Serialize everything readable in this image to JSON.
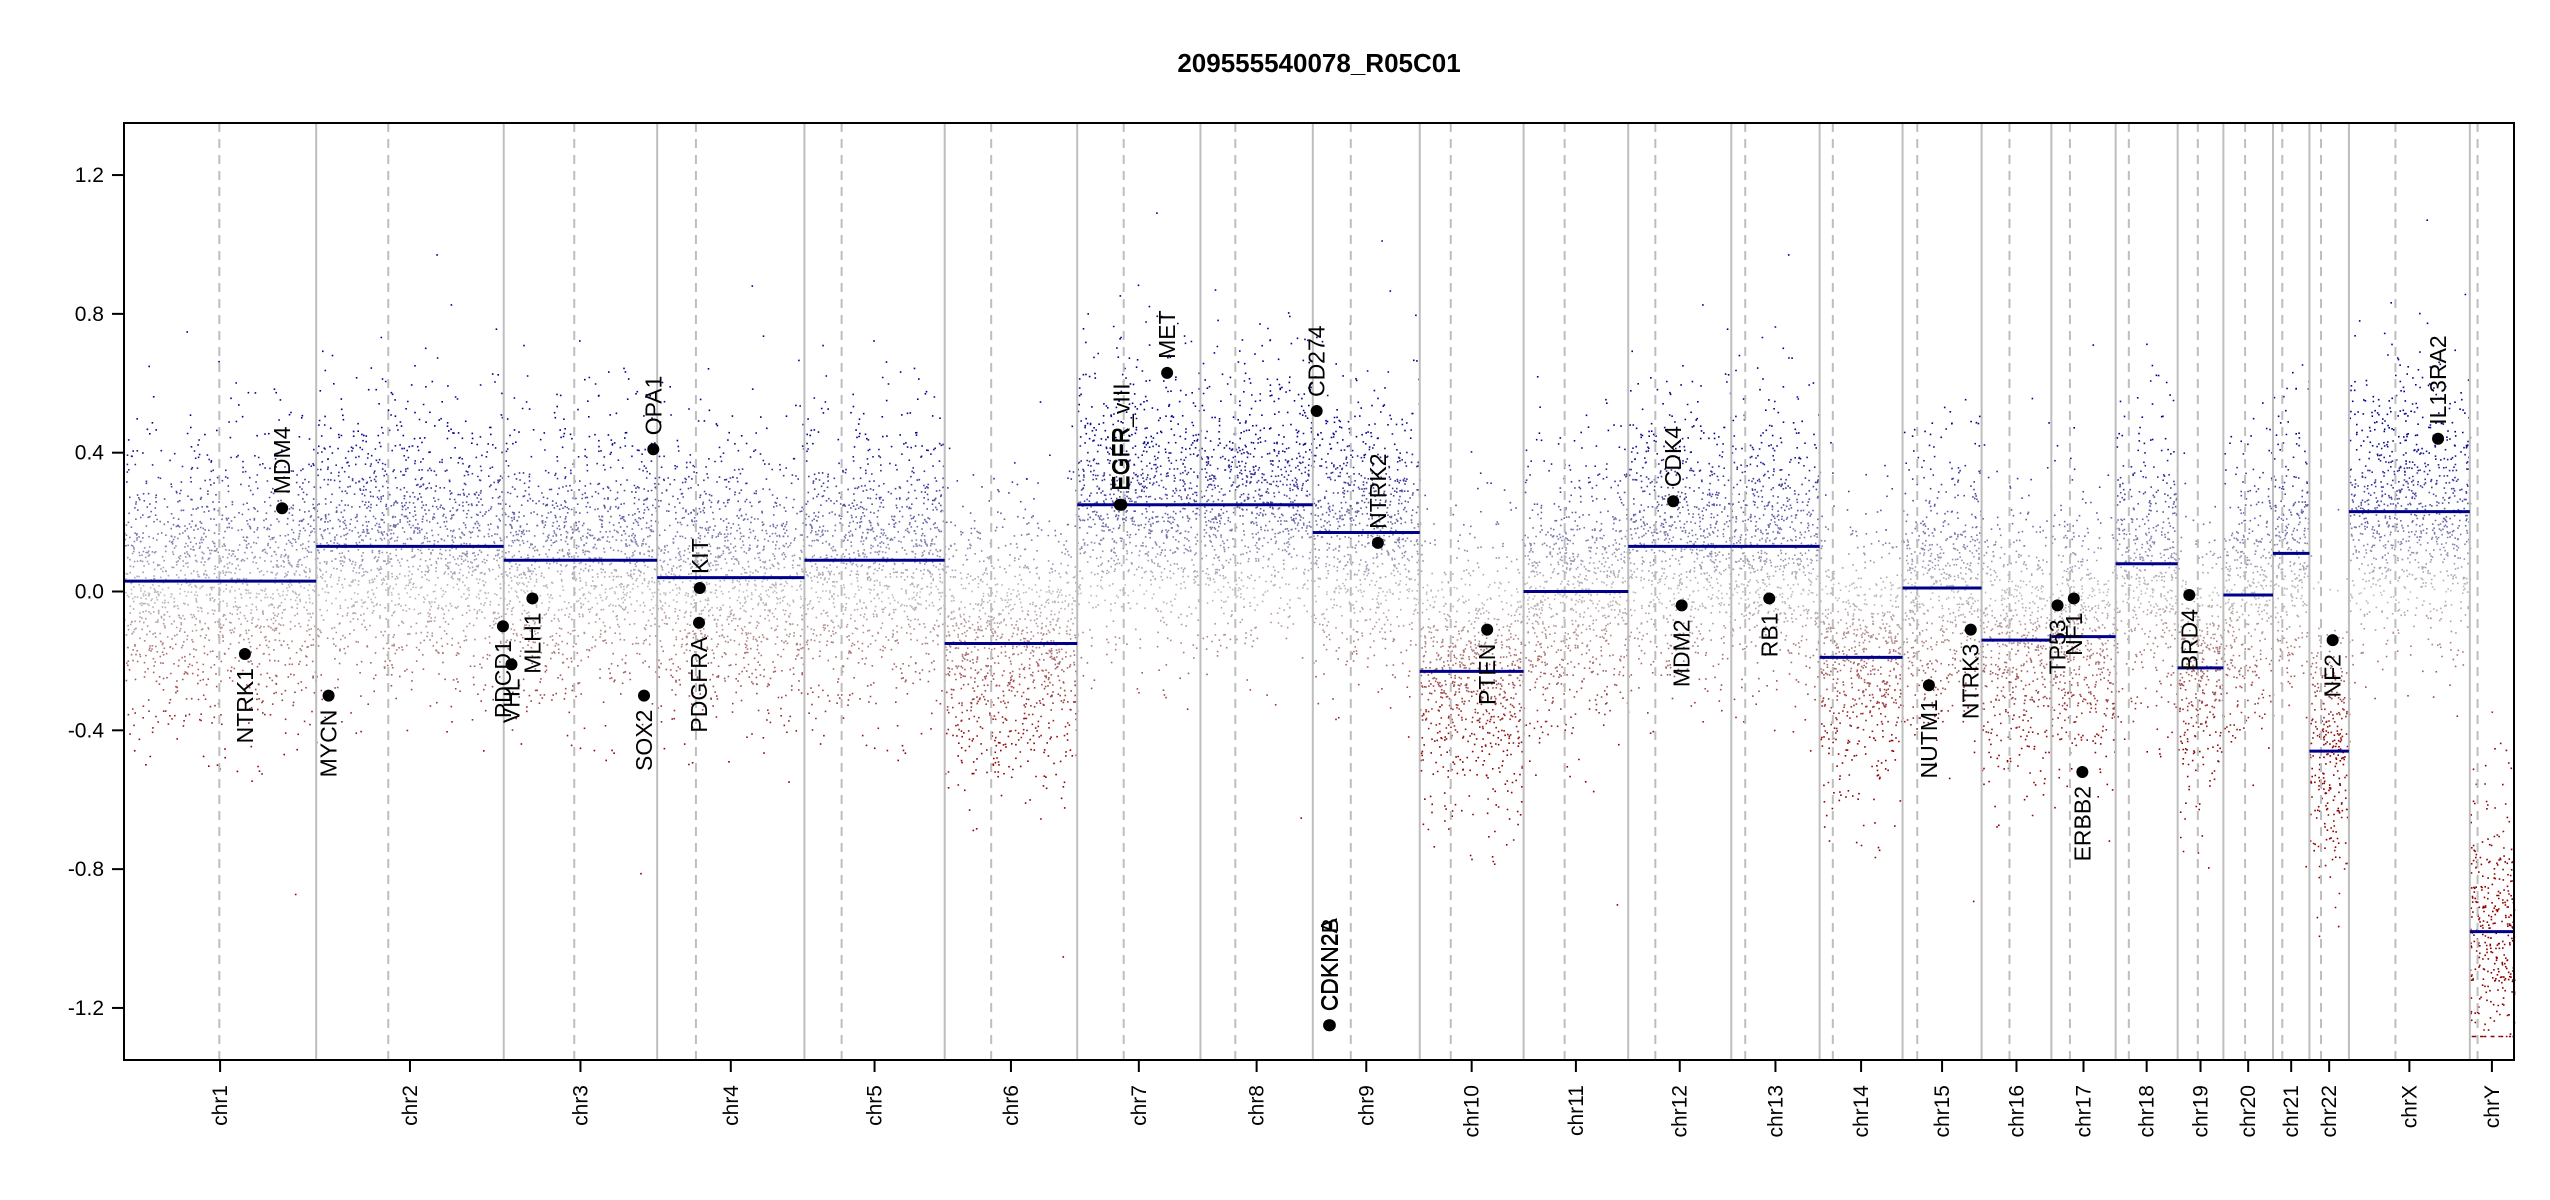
{
  "chart_data": {
    "type": "scatter",
    "title": "209555540078_R05C01",
    "xlabel": "",
    "ylabel": "",
    "ylim": [
      -1.35,
      1.35
    ],
    "yticks": [
      "-1.2",
      "-0.8",
      "-0.4",
      "0.0",
      "0.4",
      "0.8",
      "1.2"
    ],
    "grid": false,
    "colors": {
      "gain": "#00008B",
      "loss": "#8B0000",
      "neutral": "#BEBEBE",
      "segment": "#00008B",
      "boundary": "#BEBEBE"
    },
    "chromosomes": [
      {
        "name": "chr1",
        "size": 248,
        "centromere": 123,
        "segments": [
          {
            "start": 0,
            "end": 248,
            "value": 0.03
          }
        ],
        "label_tick": true
      },
      {
        "name": "chr2",
        "size": 242,
        "centromere": 93,
        "segments": [
          {
            "start": 0,
            "end": 242,
            "value": 0.13
          }
        ]
      },
      {
        "name": "chr3",
        "size": 198,
        "centromere": 91,
        "segments": [
          {
            "start": 0,
            "end": 198,
            "value": 0.09
          }
        ]
      },
      {
        "name": "chr4",
        "size": 190,
        "centromere": 50,
        "segments": [
          {
            "start": 0,
            "end": 190,
            "value": 0.04
          }
        ]
      },
      {
        "name": "chr5",
        "size": 181,
        "centromere": 48,
        "segments": [
          {
            "start": 0,
            "end": 181,
            "value": 0.09
          }
        ]
      },
      {
        "name": "chr6",
        "size": 171,
        "centromere": 60,
        "segments": [
          {
            "start": 0,
            "end": 171,
            "value": -0.15
          }
        ]
      },
      {
        "name": "chr7",
        "size": 159,
        "centromere": 60,
        "segments": [
          {
            "start": 0,
            "end": 159,
            "value": 0.25
          }
        ]
      },
      {
        "name": "chr8",
        "size": 145,
        "centromere": 45,
        "segments": [
          {
            "start": 0,
            "end": 145,
            "value": 0.25
          }
        ]
      },
      {
        "name": "chr9",
        "size": 138,
        "centromere": 49,
        "segments": [
          {
            "start": 0,
            "end": 138,
            "value": 0.17
          }
        ]
      },
      {
        "name": "chr10",
        "size": 134,
        "centromere": 40,
        "segments": [
          {
            "start": 0,
            "end": 134,
            "value": -0.23
          }
        ]
      },
      {
        "name": "chr11",
        "size": 135,
        "centromere": 53,
        "segments": [
          {
            "start": 0,
            "end": 135,
            "value": 0.0
          }
        ]
      },
      {
        "name": "chr12",
        "size": 133,
        "centromere": 35,
        "segments": [
          {
            "start": 0,
            "end": 133,
            "value": 0.13
          }
        ]
      },
      {
        "name": "chr13",
        "size": 114,
        "centromere": 18,
        "segments": [
          {
            "start": 0,
            "end": 114,
            "value": 0.13
          }
        ]
      },
      {
        "name": "chr14",
        "size": 107,
        "centromere": 17,
        "segments": [
          {
            "start": 0,
            "end": 107,
            "value": -0.19
          }
        ]
      },
      {
        "name": "chr15",
        "size": 102,
        "centromere": 19,
        "segments": [
          {
            "start": 0,
            "end": 102,
            "value": 0.01
          }
        ]
      },
      {
        "name": "chr16",
        "size": 90,
        "centromere": 36,
        "segments": [
          {
            "start": 0,
            "end": 90,
            "value": -0.14
          }
        ]
      },
      {
        "name": "chr17",
        "size": 83,
        "centromere": 24,
        "segments": [
          {
            "start": 0,
            "end": 83,
            "value": -0.13
          }
        ]
      },
      {
        "name": "chr18",
        "size": 80,
        "centromere": 17,
        "segments": [
          {
            "start": 0,
            "end": 80,
            "value": 0.08
          }
        ]
      },
      {
        "name": "chr19",
        "size": 59,
        "centromere": 26,
        "segments": [
          {
            "start": 0,
            "end": 59,
            "value": -0.22
          }
        ]
      },
      {
        "name": "chr20",
        "size": 64,
        "centromere": 28,
        "segments": [
          {
            "start": 0,
            "end": 64,
            "value": -0.01
          }
        ]
      },
      {
        "name": "chr21",
        "size": 47,
        "centromere": 12,
        "segments": [
          {
            "start": 0,
            "end": 47,
            "value": 0.11
          }
        ]
      },
      {
        "name": "chr22",
        "size": 51,
        "centromere": 15,
        "segments": [
          {
            "start": 0,
            "end": 51,
            "value": -0.46
          }
        ]
      },
      {
        "name": "chrX",
        "size": 156,
        "centromere": 60,
        "segments": [
          {
            "start": 0,
            "end": 156,
            "value": 0.23
          }
        ]
      },
      {
        "name": "chrY",
        "size": 57,
        "centromere": 10,
        "segments": [
          {
            "start": 0,
            "end": 57,
            "value": -0.98
          }
        ]
      }
    ],
    "genes": [
      {
        "name": "NTRK1",
        "chrom": "chr1",
        "pos": 156,
        "value": -0.18,
        "label_above": false
      },
      {
        "name": "MDM4",
        "chrom": "chr1",
        "pos": 204,
        "value": 0.24,
        "label_above": true
      },
      {
        "name": "MYCN",
        "chrom": "chr2",
        "pos": 16,
        "value": -0.3,
        "label_above": false
      },
      {
        "name": "PDCD1",
        "chrom": "chr2",
        "pos": 241,
        "value": -0.1,
        "label_above": false
      },
      {
        "name": "VHL",
        "chrom": "chr3",
        "pos": 10,
        "value": -0.21,
        "label_above": false
      },
      {
        "name": "MLH1",
        "chrom": "chr3",
        "pos": 37,
        "value": -0.02,
        "label_above": false
      },
      {
        "name": "SOX2",
        "chrom": "chr3",
        "pos": 181,
        "value": -0.3,
        "label_above": false
      },
      {
        "name": "OPA1",
        "chrom": "chr3",
        "pos": 193,
        "value": 0.41,
        "label_above": true
      },
      {
        "name": "KIT",
        "chrom": "chr4",
        "pos": 55,
        "value": 0.01,
        "label_above": true
      },
      {
        "name": "PDGFRA",
        "chrom": "chr4",
        "pos": 54,
        "value": -0.09,
        "label_above": false
      },
      {
        "name": "EGFR",
        "chrom": "chr7",
        "pos": 55,
        "value": 0.25,
        "label_above": true
      },
      {
        "name": "EGFR_vIII",
        "chrom": "chr7",
        "pos": 57,
        "value": 0.25,
        "label_above": true
      },
      {
        "name": "MET",
        "chrom": "chr7",
        "pos": 116,
        "value": 0.63,
        "label_above": true
      },
      {
        "name": "CD274",
        "chrom": "chr9",
        "pos": 5,
        "value": 0.52,
        "label_above": true
      },
      {
        "name": "CDKN2A",
        "chrom": "chr9",
        "pos": 21,
        "value": -1.25,
        "label_above": true
      },
      {
        "name": "CDKN2B",
        "chrom": "chr9",
        "pos": 22,
        "value": -1.25,
        "label_above": true
      },
      {
        "name": "NTRK2",
        "chrom": "chr9",
        "pos": 84,
        "value": 0.14,
        "label_above": true
      },
      {
        "name": "PTEN",
        "chrom": "chr10",
        "pos": 87,
        "value": -0.11,
        "label_above": false
      },
      {
        "name": "CDK4",
        "chrom": "chr12",
        "pos": 58,
        "value": 0.26,
        "label_above": true
      },
      {
        "name": "MDM2",
        "chrom": "chr12",
        "pos": 69,
        "value": -0.04,
        "label_above": false
      },
      {
        "name": "RB1",
        "chrom": "chr13",
        "pos": 49,
        "value": -0.02,
        "label_above": false
      },
      {
        "name": "NUTM1",
        "chrom": "chr15",
        "pos": 34,
        "value": -0.27,
        "label_above": false
      },
      {
        "name": "NTRK3",
        "chrom": "chr15",
        "pos": 88,
        "value": -0.11,
        "label_above": false
      },
      {
        "name": "TP53",
        "chrom": "chr17",
        "pos": 8,
        "value": -0.04,
        "label_above": false
      },
      {
        "name": "NF1",
        "chrom": "chr17",
        "pos": 29,
        "value": -0.02,
        "label_above": false
      },
      {
        "name": "ERBB2",
        "chrom": "chr17",
        "pos": 40,
        "value": -0.52,
        "label_above": false
      },
      {
        "name": "BRD4",
        "chrom": "chr19",
        "pos": 15,
        "value": -0.01,
        "label_above": false
      },
      {
        "name": "NF2",
        "chrom": "chr22",
        "pos": 30,
        "value": -0.14,
        "label_above": false
      },
      {
        "name": "IL13RA2",
        "chrom": "chrX",
        "pos": 115,
        "value": 0.44,
        "label_above": true
      }
    ],
    "gene_labels": {
      "NTRK1": "NTRK1",
      "MDM4": "MDM4",
      "MYCN": "MYCN",
      "PDCD1": "PDCD1",
      "VHL": "VHL",
      "MLH1": "MLH1",
      "SOX2": "SOX2",
      "OPA1": "OPA1",
      "KIT": "KIT",
      "PDGFRA": "PDGFRA",
      "EGFR": "EGFR",
      "EGFR_vIII": "EGFR_vIII",
      "MET": "MET",
      "CD274": "CD274",
      "CDKN2A": "CDKN2A",
      "CDKN2B": "CDKN2B",
      "NTRK2": "NTRK2",
      "PTEN": "PTEN",
      "CDK4": "CDK4",
      "MDM2": "MDM2",
      "RB1": "RB1",
      "NUTM1": "NUTM1",
      "NTRK3": "NTRK3",
      "TP53": "TP53",
      "NF1": "NF1",
      "ERBB2": "ERBB2",
      "BRD4": "BRD4",
      "NF2": "NF2",
      "IL13RA2": "IL13RA2"
    }
  }
}
